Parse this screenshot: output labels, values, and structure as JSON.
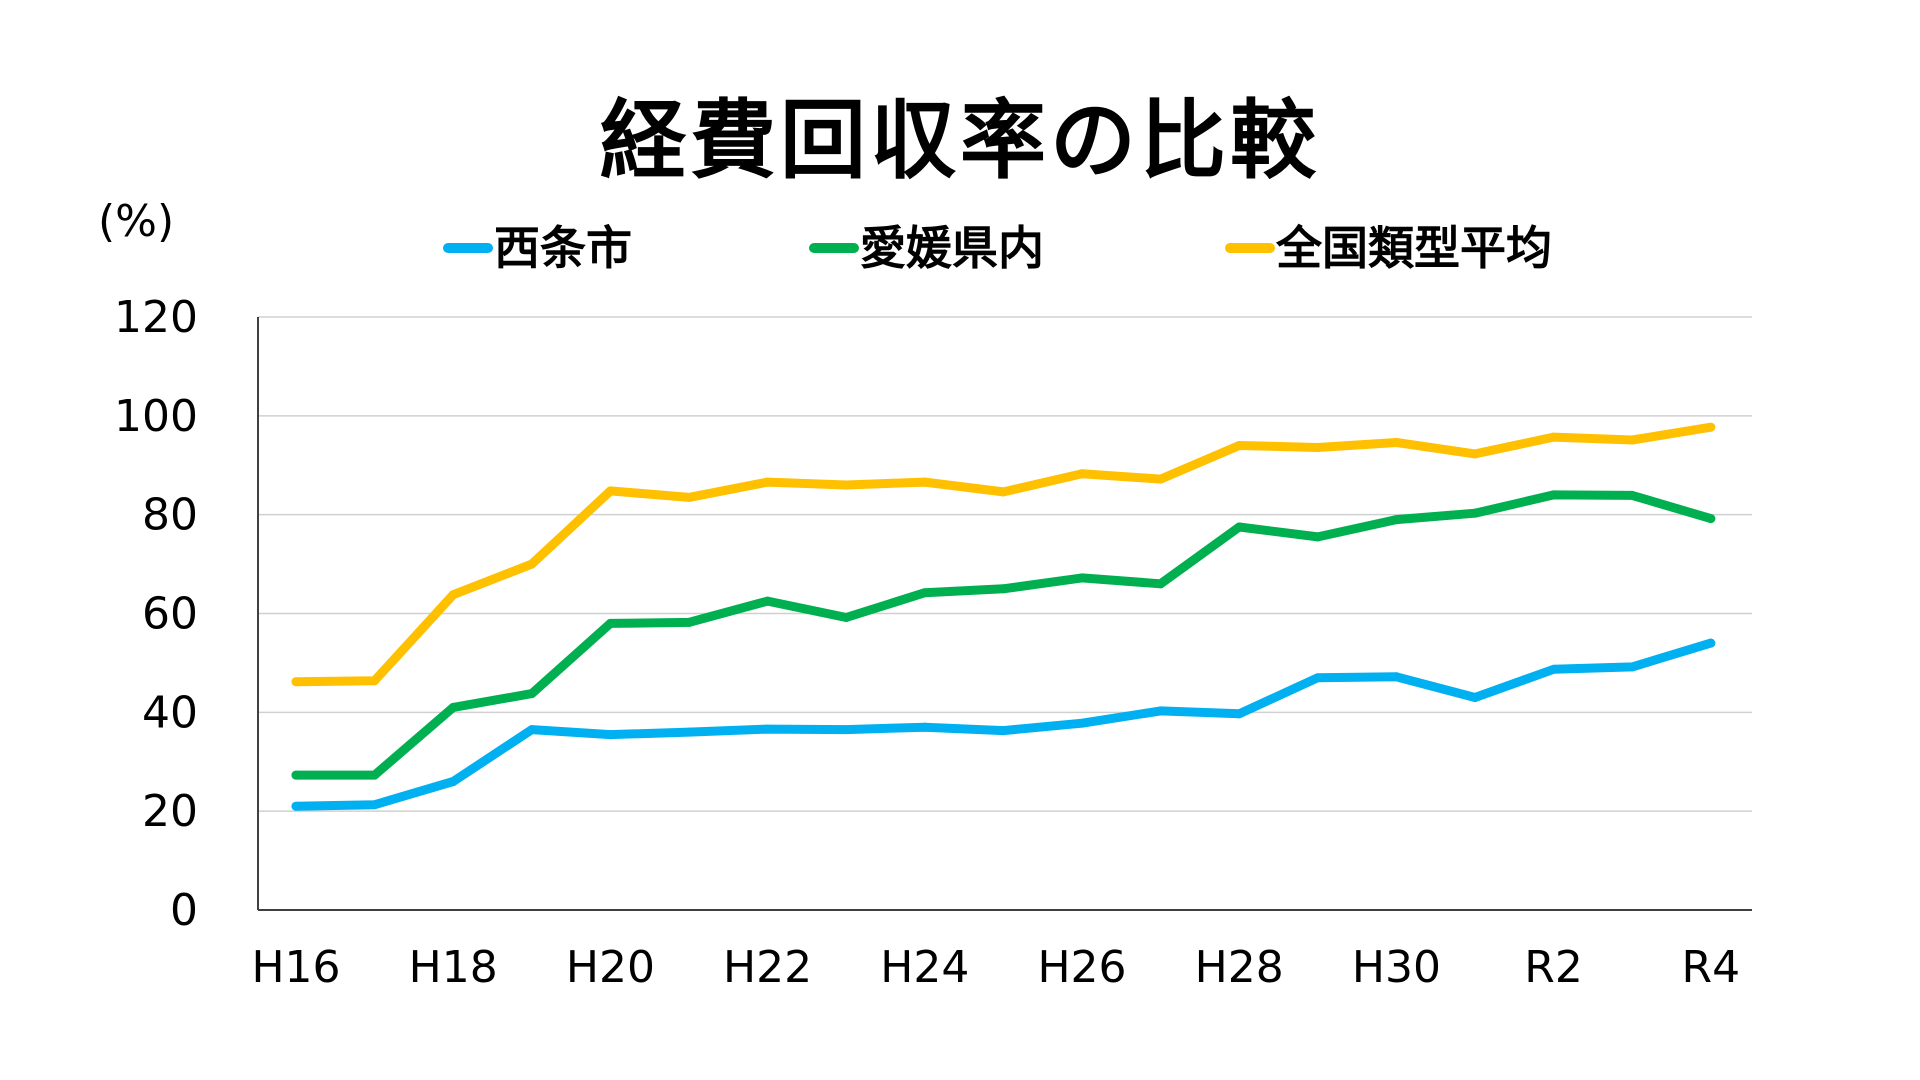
{
  "chart_data": {
    "type": "line",
    "title": "経費回収率の比較",
    "ylabel": "(%)",
    "xlabel": "",
    "ylim": [
      0,
      120
    ],
    "yticks": [
      0,
      20,
      40,
      60,
      80,
      100,
      120
    ],
    "grid": true,
    "legend_position": "top",
    "x": [
      "H16",
      "H17",
      "H18",
      "H19",
      "H20",
      "H21",
      "H22",
      "H23",
      "H24",
      "H25",
      "H26",
      "H27",
      "H28",
      "H29",
      "H30",
      "R1",
      "R2",
      "R3",
      "R4"
    ],
    "xtick_labels": [
      "H16",
      "",
      "H18",
      "",
      "H20",
      "",
      "H22",
      "",
      "H24",
      "",
      "H26",
      "",
      "H28",
      "",
      "H30",
      "",
      "R2",
      "",
      "R4"
    ],
    "series": [
      {
        "name": "西条市",
        "color": "#00b0f0",
        "values": [
          21,
          21.3,
          26,
          36.5,
          35.5,
          36,
          36.6,
          36.5,
          37,
          36.3,
          37.8,
          40.3,
          39.7,
          47,
          47.2,
          43,
          48.7,
          49.2,
          54
        ]
      },
      {
        "name": "愛媛県内",
        "color": "#00b050",
        "values": [
          27.3,
          27.3,
          41,
          43.8,
          58,
          58.2,
          62.5,
          59.2,
          64.2,
          65,
          67.2,
          66,
          77.5,
          75.5,
          79,
          80.3,
          84,
          83.9,
          79.2
        ]
      },
      {
        "name": "全国類型平均",
        "color": "#ffc000",
        "values": [
          46.2,
          46.4,
          63.8,
          70,
          84.8,
          83.5,
          86.6,
          86,
          86.6,
          84.6,
          88.3,
          87.2,
          94,
          93.6,
          94.6,
          92.3,
          95.7,
          95.1,
          97.7
        ]
      }
    ]
  }
}
